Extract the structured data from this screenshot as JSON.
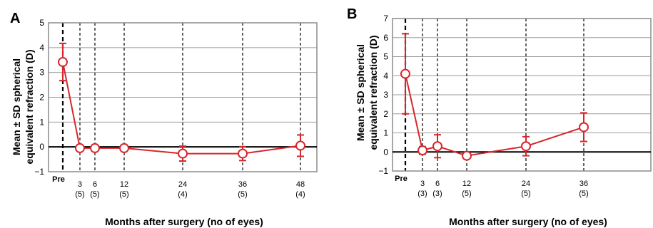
{
  "chart_data": [
    {
      "type": "line",
      "panel": "A",
      "ylabel_line1": "Mean ± SD spherical",
      "ylabel_line2": "equivalent refraction (D)",
      "xlabel": "Months after surgery (no of eyes)",
      "ylim": [
        -1,
        5
      ],
      "yticks": [
        -1,
        0,
        1,
        2,
        3,
        4,
        5
      ],
      "ytick_labels": [
        "−1",
        "0",
        "1",
        "2",
        "3",
        "4",
        "5"
      ],
      "grid": true,
      "points": [
        {
          "x": 0,
          "label": "Pre",
          "n": "",
          "mean": 3.42,
          "sd": 0.75
        },
        {
          "x": 3,
          "label": "3",
          "n": "(5)",
          "mean": -0.05,
          "sd": 0.12
        },
        {
          "x": 6,
          "label": "6",
          "n": "(5)",
          "mean": -0.05,
          "sd": 0.12
        },
        {
          "x": 12,
          "label": "12",
          "n": "(5)",
          "mean": -0.05,
          "sd": 0.12
        },
        {
          "x": 24,
          "label": "24",
          "n": "(4)",
          "mean": -0.27,
          "sd": 0.3
        },
        {
          "x": 36,
          "label": "36",
          "n": "(5)",
          "mean": -0.27,
          "sd": 0.28
        },
        {
          "x": 48,
          "label": "48",
          "n": "(4)",
          "mean": 0.05,
          "sd": 0.43
        }
      ]
    },
    {
      "type": "line",
      "panel": "B",
      "ylabel_line1": "Mean ± SD spherical",
      "ylabel_line2": "equivalent refraction (D)",
      "xlabel": "Months after surgery (no of eyes)",
      "ylim": [
        -1,
        7
      ],
      "yticks": [
        -1,
        0,
        1,
        2,
        3,
        4,
        5,
        6,
        7
      ],
      "ytick_labels": [
        "−1",
        "0",
        "1",
        "2",
        "3",
        "4",
        "5",
        "6",
        "7"
      ],
      "grid": true,
      "points": [
        {
          "x": 0,
          "label": "Pre",
          "n": "",
          "mean": 4.1,
          "sd": 2.1
        },
        {
          "x": 3,
          "label": "3",
          "n": "(3)",
          "mean": 0.08,
          "sd": 0.2
        },
        {
          "x": 6,
          "label": "6",
          "n": "(3)",
          "mean": 0.3,
          "sd": 0.6
        },
        {
          "x": 12,
          "label": "12",
          "n": "(5)",
          "mean": -0.2,
          "sd": 0.15
        },
        {
          "x": 24,
          "label": "24",
          "n": "(5)",
          "mean": 0.3,
          "sd": 0.5
        },
        {
          "x": 36,
          "label": "36",
          "n": "(5)",
          "mean": 1.3,
          "sd": 0.75
        }
      ]
    }
  ],
  "colors": {
    "series": "#d7262b",
    "grid": "#9a9a9a",
    "frame": "#8c8c8c",
    "zero_line": "#000000",
    "marker_fill": "#ffffff"
  }
}
